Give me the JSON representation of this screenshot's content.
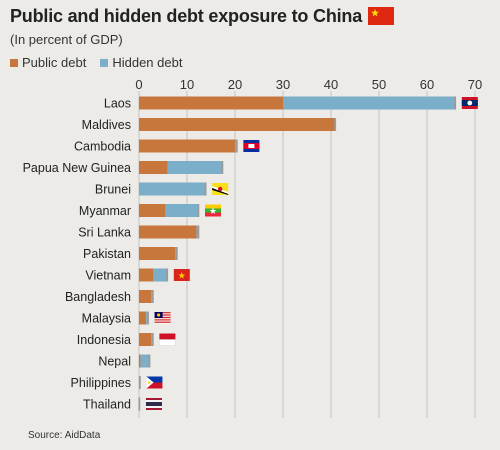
{
  "header": {
    "title": "Public and hidden debt exposure to China",
    "subtitle": "(In percent of GDP)"
  },
  "source": "Source: AidData",
  "colors": {
    "public": "#c8773c",
    "hidden": "#7aaec9",
    "background": "#ecebe8",
    "grid": "#b9b9b6"
  },
  "chart_data": {
    "type": "bar",
    "orientation": "horizontal",
    "stacked": true,
    "title": "Public and hidden debt exposure to China",
    "subtitle": "(In percent of GDP)",
    "categories": [
      "Laos",
      "Maldives",
      "Cambodia",
      "Papua New Guinea",
      "Brunei",
      "Myanmar",
      "Sri Lanka",
      "Pakistan",
      "Vietnam",
      "Bangladesh",
      "Malaysia",
      "Indonesia",
      "Nepal",
      "Philippines",
      "Thailand"
    ],
    "series": [
      {
        "name": "Public debt",
        "color": "#c8773c",
        "values": [
          30,
          41,
          20,
          6,
          0,
          5.5,
          12,
          7.5,
          3,
          2.5,
          1.5,
          2.5,
          0.3,
          0.3,
          0.2
        ]
      },
      {
        "name": "Hidden debt",
        "color": "#7aaec9",
        "values": [
          36,
          0,
          0.5,
          11.5,
          14,
          7,
          0.5,
          0.5,
          3,
          0.5,
          0.5,
          0.5,
          2,
          0,
          0
        ]
      }
    ],
    "xlim": [
      0,
      70
    ],
    "xticks": [
      0,
      10,
      20,
      30,
      40,
      50,
      60,
      70
    ],
    "axis_position": "top",
    "grid": true,
    "legend_position": "top-left",
    "flags": [
      "laos-flag",
      null,
      "cambodia-flag",
      null,
      "brunei-flag",
      "myanmar-flag",
      null,
      null,
      "vietnam-flag",
      null,
      "malaysia-flag",
      "indonesia-flag",
      null,
      "philippines-flag",
      "thailand-flag"
    ]
  }
}
